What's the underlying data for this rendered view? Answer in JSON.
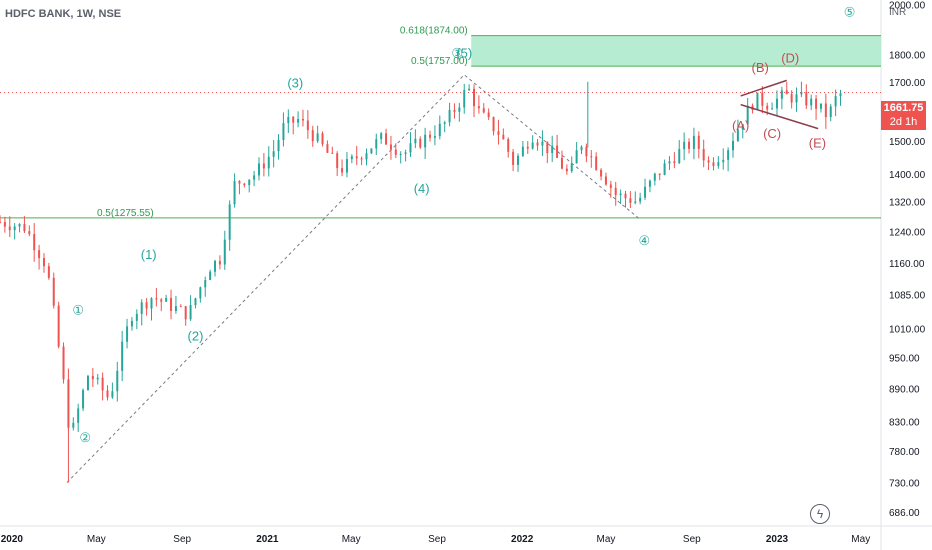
{
  "header": {
    "title": "HDFC BANK, 1W, NSE"
  },
  "price_box": {
    "price": "1661.75",
    "countdown": "2d 1h"
  },
  "colors": {
    "up": "#26a69a",
    "down": "#ef5350",
    "label_teal": "#26a69a",
    "label_red": "#c34d55",
    "zone_fill": "#a9e9c9",
    "line_green": "#4caf50",
    "dashed": "#787b86"
  },
  "chart_data": {
    "type": "candlestick",
    "title": "HDFC BANK, 1W, NSE",
    "currency": "INR",
    "y_scale": "log",
    "ylim": [
      666,
      2020
    ],
    "x_range": [
      "2019-12-15",
      "2023-05-30"
    ],
    "y_ticks": [
      "2000.00",
      "1800.00",
      "1700.00",
      "1600.00",
      "1500.00",
      "1400.00",
      "1320.00",
      "1240.00",
      "1160.00",
      "1085.00",
      "1010.00",
      "950.00",
      "890.00",
      "830.00",
      "780.00",
      "730.00",
      "686.00"
    ],
    "x_ticks": [
      {
        "label": "2020",
        "date": "2020-01-01"
      },
      {
        "label": "May",
        "date": "2020-05-01"
      },
      {
        "label": "Sep",
        "date": "2020-09-01"
      },
      {
        "label": "2021",
        "date": "2021-01-01"
      },
      {
        "label": "May",
        "date": "2021-05-01"
      },
      {
        "label": "Sep",
        "date": "2021-09-01"
      },
      {
        "label": "2022",
        "date": "2022-01-01"
      },
      {
        "label": "May",
        "date": "2022-05-01"
      },
      {
        "label": "Sep",
        "date": "2022-09-01"
      },
      {
        "label": "2023",
        "date": "2023-01-01"
      },
      {
        "label": "May",
        "date": "2023-05-01"
      }
    ],
    "anchors": [
      [
        "2019-12-15",
        1265
      ],
      [
        "2020-01-20",
        1250
      ],
      [
        "2020-02-20",
        1150
      ],
      [
        "2020-03-10",
        950
      ],
      [
        "2020-03-25",
        800
      ],
      [
        "2020-04-20",
        920
      ],
      [
        "2020-05-20",
        870
      ],
      [
        "2020-06-20",
        1040
      ],
      [
        "2020-07-20",
        1080
      ],
      [
        "2020-08-15",
        1060
      ],
      [
        "2020-09-10",
        1040
      ],
      [
        "2020-10-10",
        1150
      ],
      [
        "2020-10-25",
        1170
      ],
      [
        "2020-11-15",
        1370
      ],
      [
        "2020-12-15",
        1400
      ],
      [
        "2021-01-10",
        1470
      ],
      [
        "2021-01-25",
        1550
      ],
      [
        "2021-02-15",
        1570
      ],
      [
        "2021-03-15",
        1500
      ],
      [
        "2021-04-15",
        1410
      ],
      [
        "2021-05-15",
        1460
      ],
      [
        "2021-06-15",
        1510
      ],
      [
        "2021-07-15",
        1460
      ],
      [
        "2021-08-15",
        1510
      ],
      [
        "2021-09-10",
        1550
      ],
      [
        "2021-10-01",
        1620
      ],
      [
        "2021-10-15",
        1680
      ],
      [
        "2021-11-01",
        1590
      ],
      [
        "2021-12-01",
        1520
      ],
      [
        "2021-12-20",
        1430
      ],
      [
        "2022-01-15",
        1520
      ],
      [
        "2022-02-15",
        1460
      ],
      [
        "2022-03-10",
        1390
      ],
      [
        "2022-03-25",
        1500
      ],
      [
        "2022-04-20",
        1420
      ],
      [
        "2022-05-15",
        1340
      ],
      [
        "2022-06-15",
        1320
      ],
      [
        "2022-07-10",
        1390
      ],
      [
        "2022-08-10",
        1460
      ],
      [
        "2022-09-05",
        1500
      ],
      [
        "2022-09-25",
        1430
      ],
      [
        "2022-10-20",
        1470
      ],
      [
        "2022-11-15",
        1580
      ],
      [
        "2022-12-01",
        1640
      ],
      [
        "2022-12-20",
        1620
      ],
      [
        "2023-01-10",
        1650
      ],
      [
        "2023-02-05",
        1640
      ],
      [
        "2023-02-25",
        1620
      ],
      [
        "2023-03-15",
        1580
      ],
      [
        "2023-03-28",
        1650
      ],
      [
        "2023-04-07",
        1662
      ]
    ],
    "levels": [
      {
        "label": "0.618(1874.00)",
        "value": 1874.0
      },
      {
        "label": "0.5(1757.00)",
        "value": 1757.0
      },
      {
        "label": "0.5(1275.55)",
        "value": 1275.55
      }
    ],
    "current_price": 1661.75,
    "wave_labels": [
      {
        "text": "①",
        "date": "2020-04-05",
        "price": 1040,
        "color": "teal"
      },
      {
        "text": "②",
        "date": "2020-04-15",
        "price": 795,
        "color": "teal"
      },
      {
        "text": "(1)",
        "date": "2020-07-15",
        "price": 1170,
        "color": "teal"
      },
      {
        "text": "(2)",
        "date": "2020-09-20",
        "price": 985,
        "color": "teal"
      },
      {
        "text": "(3)",
        "date": "2021-02-10",
        "price": 1680,
        "color": "teal"
      },
      {
        "text": "(4)",
        "date": "2021-08-10",
        "price": 1345,
        "color": "teal"
      },
      {
        "text": "③",
        "date": "2021-09-30",
        "price": 1790,
        "color": "teal"
      },
      {
        "text": "(5)",
        "date": "2021-10-10",
        "price": 1790,
        "color": "teal"
      },
      {
        "text": "④",
        "date": "2022-06-25",
        "price": 1205,
        "color": "teal"
      },
      {
        "text": "⑤",
        "date": "2023-04-15",
        "price": 1950,
        "color": "teal"
      },
      {
        "text": "(A)",
        "date": "2022-11-10",
        "price": 1535,
        "color": "red"
      },
      {
        "text": "(B)",
        "date": "2022-12-08",
        "price": 1735,
        "color": "red"
      },
      {
        "text": "(C)",
        "date": "2022-12-25",
        "price": 1510,
        "color": "red"
      },
      {
        "text": "(D)",
        "date": "2023-01-20",
        "price": 1770,
        "color": "red"
      },
      {
        "text": "(E)",
        "date": "2023-02-28",
        "price": 1480,
        "color": "red"
      }
    ],
    "dashed_line": [
      [
        "2020-03-20",
        730
      ],
      [
        "2021-10-10",
        1725
      ],
      [
        "2022-06-20",
        1270
      ]
    ],
    "triangle_lines": [
      [
        [
          "2022-11-10",
          1650
        ],
        [
          "2023-01-15",
          1705
        ]
      ],
      [
        [
          "2022-11-10",
          1620
        ],
        [
          "2023-03-01",
          1540
        ]
      ]
    ]
  }
}
